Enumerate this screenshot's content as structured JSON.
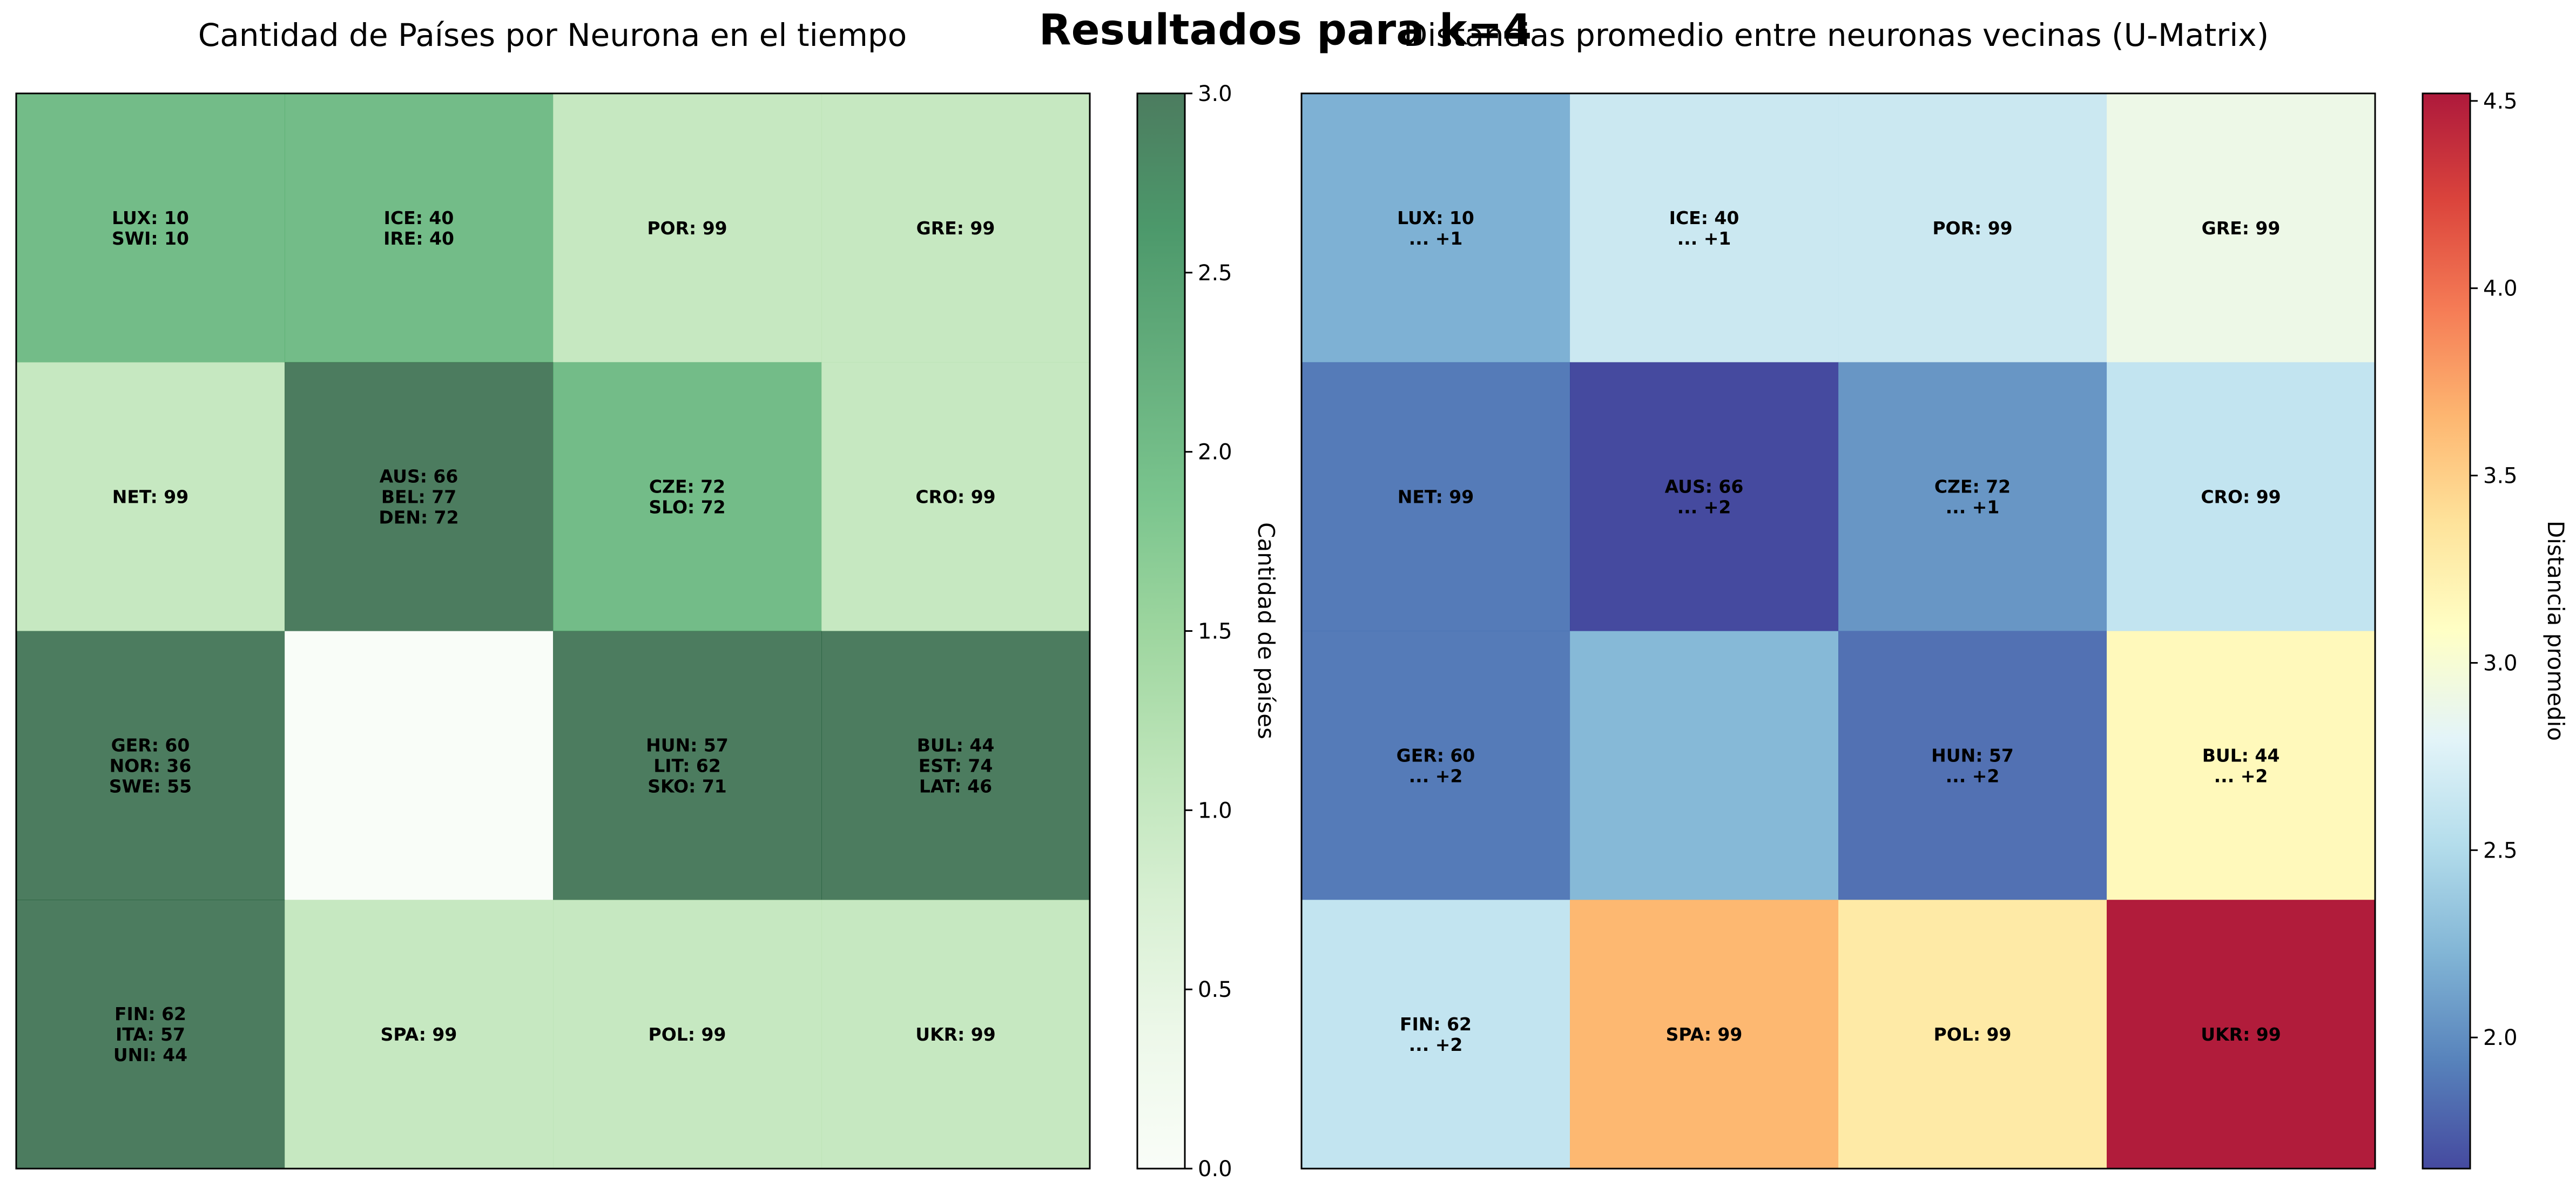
{
  "figure": {
    "suptitle": "Resultados para k=4"
  },
  "chart_data": [
    {
      "type": "heatmap",
      "title": "Cantidad de Países por Neurona en el tiempo",
      "grid_size": [
        4,
        4
      ],
      "values": [
        [
          2,
          2,
          1,
          1
        ],
        [
          1,
          3,
          2,
          1
        ],
        [
          3,
          0,
          3,
          3
        ],
        [
          3,
          1,
          1,
          1
        ]
      ],
      "cell_labels": [
        [
          [
            "LUX: 10",
            "SWI: 10"
          ],
          [
            "ICE: 40",
            "IRE: 40"
          ],
          [
            "POR: 99"
          ],
          [
            "GRE: 99"
          ]
        ],
        [
          [
            "NET: 99"
          ],
          [
            "AUS: 66",
            "BEL: 77",
            "DEN: 72"
          ],
          [
            "CZE: 72",
            "SLO: 72"
          ],
          [
            "CRO: 99"
          ]
        ],
        [
          [
            "GER: 60",
            "NOR: 36",
            "SWE: 55"
          ],
          [],
          [
            "HUN: 57",
            "LIT: 62",
            "SKO: 71"
          ],
          [
            "BUL: 44",
            "EST: 74",
            "LAT: 46"
          ]
        ],
        [
          [
            "FIN: 62",
            "ITA: 57",
            "UNI: 44"
          ],
          [
            "SPA: 99"
          ],
          [
            "POL: 99"
          ],
          [
            "UKR: 99"
          ]
        ]
      ],
      "colormap": "Greens",
      "alpha": 0.7,
      "colorbar": {
        "label": "Cantidad de países",
        "range": [
          0,
          3
        ],
        "ticks": [
          "0.0",
          "0.5",
          "1.0",
          "1.5",
          "2.0",
          "2.5",
          "3.0"
        ]
      }
    },
    {
      "type": "heatmap",
      "title": "Distancias promedio entre neuronas vecinas (U-Matrix)",
      "grid_size": [
        4,
        4
      ],
      "values": [
        [
          2.2,
          2.65,
          2.65,
          2.9
        ],
        [
          1.9,
          1.65,
          2.05,
          2.6
        ],
        [
          1.9,
          2.25,
          1.85,
          3.15
        ],
        [
          2.6,
          3.65,
          3.3,
          4.5
        ]
      ],
      "cell_labels": [
        [
          [
            "LUX: 10",
            "... +1"
          ],
          [
            "ICE: 40",
            "... +1"
          ],
          [
            "POR: 99"
          ],
          [
            "GRE: 99"
          ]
        ],
        [
          [
            "NET: 99"
          ],
          [
            "AUS: 66",
            "... +2"
          ],
          [
            "CZE: 72",
            "... +1"
          ],
          [
            "CRO: 99"
          ]
        ],
        [
          [
            "GER: 60",
            "... +2"
          ],
          [],
          [
            "HUN: 57",
            "... +2"
          ],
          [
            "BUL: 44",
            "... +2"
          ]
        ],
        [
          [
            "FIN: 62",
            "... +2"
          ],
          [
            "SPA: 99"
          ],
          [
            "POL: 99"
          ],
          [
            "UKR: 99"
          ]
        ]
      ],
      "colormap": "RdYlBu_r",
      "alpha": 0.9,
      "colorbar": {
        "label": "Distancia promedio",
        "range": [
          1.65,
          4.52
        ],
        "ticks": [
          "2.0",
          "2.5",
          "3.0",
          "3.5",
          "4.0",
          "4.5"
        ]
      }
    }
  ]
}
